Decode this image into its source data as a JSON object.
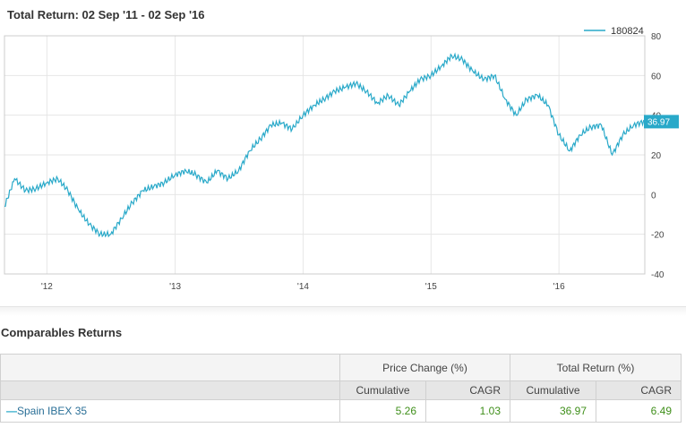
{
  "chart": {
    "title": "Total Return: 02 Sep '11 - 02 Sep '16",
    "legend_label": "180824",
    "last_value_label": "36.97",
    "line_color": "#29a9c9"
  },
  "chart_data": {
    "type": "line",
    "title": "Total Return: 02 Sep '11 - 02 Sep '16",
    "xlabel": "",
    "ylabel": "",
    "ylim": [
      -40,
      80
    ],
    "yticks": [
      80,
      60,
      40,
      20,
      0,
      -20,
      -40
    ],
    "xtick_labels": [
      "'12",
      "'13",
      "'14",
      "'15",
      "'16"
    ],
    "xtick_dates": [
      "2012-01-01",
      "2013-01-01",
      "2014-01-01",
      "2015-01-01",
      "2016-01-01"
    ],
    "x_range": [
      "2011-09-02",
      "2016-09-02"
    ],
    "grid": true,
    "legend_position": "top-right",
    "series": [
      {
        "name": "180824",
        "color": "#29a9c9",
        "points": [
          [
            "2011-09-02",
            -6
          ],
          [
            "2011-10-01",
            8
          ],
          [
            "2011-11-01",
            2
          ],
          [
            "2011-12-01",
            3
          ],
          [
            "2012-01-01",
            6
          ],
          [
            "2012-02-01",
            8
          ],
          [
            "2012-03-01",
            2
          ],
          [
            "2012-04-01",
            -8
          ],
          [
            "2012-05-01",
            -15
          ],
          [
            "2012-06-01",
            -20
          ],
          [
            "2012-07-01",
            -20
          ],
          [
            "2012-08-01",
            -12
          ],
          [
            "2012-09-01",
            -4
          ],
          [
            "2012-10-01",
            2
          ],
          [
            "2012-11-01",
            4
          ],
          [
            "2012-12-01",
            6
          ],
          [
            "2013-01-01",
            10
          ],
          [
            "2013-02-01",
            12
          ],
          [
            "2013-03-01",
            10
          ],
          [
            "2013-04-01",
            6
          ],
          [
            "2013-05-01",
            12
          ],
          [
            "2013-06-01",
            8
          ],
          [
            "2013-07-01",
            12
          ],
          [
            "2013-08-01",
            22
          ],
          [
            "2013-09-01",
            28
          ],
          [
            "2013-10-01",
            35
          ],
          [
            "2013-11-01",
            36
          ],
          [
            "2013-12-01",
            33
          ],
          [
            "2014-01-01",
            40
          ],
          [
            "2014-02-01",
            45
          ],
          [
            "2014-03-01",
            48
          ],
          [
            "2014-04-01",
            52
          ],
          [
            "2014-05-01",
            54
          ],
          [
            "2014-06-01",
            56
          ],
          [
            "2014-07-01",
            52
          ],
          [
            "2014-08-01",
            46
          ],
          [
            "2014-09-01",
            50
          ],
          [
            "2014-10-01",
            45
          ],
          [
            "2014-11-01",
            52
          ],
          [
            "2014-12-01",
            58
          ],
          [
            "2015-01-01",
            60
          ],
          [
            "2015-02-01",
            65
          ],
          [
            "2015-03-01",
            70
          ],
          [
            "2015-04-01",
            68
          ],
          [
            "2015-05-01",
            62
          ],
          [
            "2015-06-01",
            58
          ],
          [
            "2015-07-01",
            60
          ],
          [
            "2015-08-01",
            48
          ],
          [
            "2015-09-01",
            40
          ],
          [
            "2015-10-01",
            48
          ],
          [
            "2015-11-01",
            50
          ],
          [
            "2015-12-01",
            45
          ],
          [
            "2016-01-01",
            30
          ],
          [
            "2016-02-01",
            22
          ],
          [
            "2016-03-01",
            30
          ],
          [
            "2016-04-01",
            34
          ],
          [
            "2016-05-01",
            35
          ],
          [
            "2016-06-01",
            20
          ],
          [
            "2016-07-01",
            30
          ],
          [
            "2016-08-01",
            35
          ],
          [
            "2016-09-02",
            36.97
          ]
        ]
      }
    ]
  },
  "comparables": {
    "section_title": "Comparables Returns",
    "group_headers": [
      "Price Change (%)",
      "Total Return (%)"
    ],
    "sub_headers": [
      "Cumulative",
      "CAGR",
      "Cumulative",
      "CAGR"
    ],
    "rows": [
      {
        "dash": "—",
        "name": "Spain IBEX 35",
        "values": [
          "5.26",
          "1.03",
          "36.97",
          "6.49"
        ]
      }
    ]
  }
}
